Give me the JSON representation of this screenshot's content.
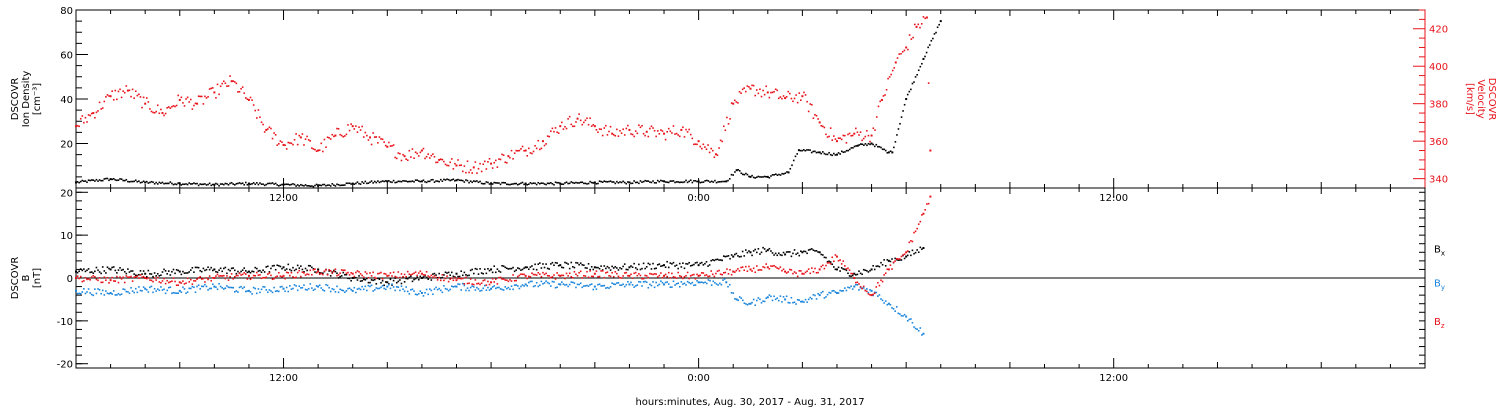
{
  "xlabel": "hours:minutes, Aug. 30, 2017 - Aug. 31, 2017",
  "colors": {
    "black": "#000000",
    "red": "#e8141c",
    "blue": "#1c86dc"
  },
  "chart_data": [
    {
      "type": "scatter",
      "panel": "top",
      "ylabel": [
        "DSCOVR",
        "Ion Density",
        "[cm⁻³]"
      ],
      "ylim": [
        0,
        80
      ],
      "yticks": [
        "80",
        "60",
        "40",
        "20"
      ],
      "xlim": [
        6,
        45
      ],
      "xticks": [
        {
          "x": 12,
          "label": "12:00"
        },
        {
          "x": 24,
          "label": "0:00"
        },
        {
          "x": 36,
          "label": "12:00"
        }
      ],
      "grid": false,
      "right_axis": {
        "ylabel": [
          "DSCOVR",
          "Velocity",
          "[km/s]"
        ],
        "ylim": [
          335,
          430
        ],
        "ticks": [
          "420",
          "400",
          "380",
          "360",
          "340"
        ]
      },
      "series": [
        {
          "axis": "left",
          "color": "#000000",
          "points": [
            [
              6,
              2.5
            ],
            [
              7,
              4
            ],
            [
              8,
              2.5
            ],
            [
              9,
              2
            ],
            [
              10,
              1.5
            ],
            [
              11,
              2
            ],
            [
              12,
              1.5
            ],
            [
              13,
              1
            ],
            [
              14,
              2
            ],
            [
              15,
              3
            ],
            [
              16,
              3
            ],
            [
              17,
              3.5
            ],
            [
              18,
              2
            ],
            [
              19,
              2
            ],
            [
              20,
              2
            ],
            [
              21,
              2.5
            ],
            [
              22,
              2.5
            ],
            [
              23,
              3
            ],
            [
              24,
              3
            ],
            [
              24.8,
              3
            ],
            [
              25.1,
              8
            ],
            [
              25.5,
              5
            ],
            [
              26,
              5
            ],
            [
              26.6,
              7
            ],
            [
              26.9,
              17
            ],
            [
              27.5,
              16
            ],
            [
              28,
              15
            ],
            [
              28.6,
              19
            ],
            [
              29,
              20
            ],
            [
              29.5,
              16
            ],
            [
              29.6,
              16
            ],
            [
              30,
              40
            ],
            [
              30.5,
              58
            ],
            [
              31,
              75
            ]
          ]
        },
        {
          "axis": "right",
          "color": "#e8141c",
          "points": [
            [
              6,
              368
            ],
            [
              6.5,
              375
            ],
            [
              7,
              384
            ],
            [
              7.5,
              387
            ],
            [
              8,
              380
            ],
            [
              8.5,
              375
            ],
            [
              9,
              382
            ],
            [
              9.5,
              380
            ],
            [
              10,
              386
            ],
            [
              10.5,
              392
            ],
            [
              11,
              382
            ],
            [
              11.5,
              366
            ],
            [
              12,
              358
            ],
            [
              12.5,
              362
            ],
            [
              13,
              355
            ],
            [
              13.5,
              363
            ],
            [
              14,
              368
            ],
            [
              14.5,
              362
            ],
            [
              15,
              357
            ],
            [
              15.5,
              352
            ],
            [
              16,
              355
            ],
            [
              16.5,
              350
            ],
            [
              17,
              347
            ],
            [
              17.5,
              346
            ],
            [
              18,
              348
            ],
            [
              18.5,
              352
            ],
            [
              19,
              355
            ],
            [
              19.5,
              360
            ],
            [
              20,
              368
            ],
            [
              20.5,
              372
            ],
            [
              21,
              368
            ],
            [
              21.5,
              364
            ],
            [
              22,
              366
            ],
            [
              22.5,
              365
            ],
            [
              23,
              364
            ],
            [
              23.5,
              366
            ],
            [
              24,
              360
            ],
            [
              24.5,
              353
            ],
            [
              25,
              380
            ],
            [
              25.5,
              388
            ],
            [
              26,
              386
            ],
            [
              26.5,
              383
            ],
            [
              27,
              384
            ],
            [
              27.5,
              370
            ],
            [
              28,
              360
            ],
            [
              28.5,
              364
            ],
            [
              29,
              363
            ],
            [
              29.3,
              382
            ],
            [
              29.7,
              402
            ],
            [
              30,
              410
            ],
            [
              30.3,
              421
            ],
            [
              30.6,
              426
            ],
            [
              30.7,
              355
            ]
          ]
        }
      ]
    },
    {
      "type": "scatter",
      "panel": "bottom",
      "ylabel": [
        "DSCOVR",
        "B",
        "[nT]"
      ],
      "ylim": [
        -21,
        21
      ],
      "yticks": [
        "20",
        "10",
        "0",
        "-10",
        "-20"
      ],
      "xlim": [
        6,
        45
      ],
      "xticks": [
        {
          "x": 12,
          "label": "12:00"
        },
        {
          "x": 24,
          "label": "0:00"
        },
        {
          "x": 36,
          "label": "12:00"
        }
      ],
      "zero_line": 0,
      "grid": false,
      "series": [
        {
          "name": "B",
          "sub": "x",
          "color": "#000000",
          "points": [
            [
              6,
              1.5
            ],
            [
              7,
              2
            ],
            [
              8,
              1
            ],
            [
              9,
              1.5
            ],
            [
              10,
              2
            ],
            [
              11,
              1.5
            ],
            [
              12,
              2.5
            ],
            [
              13,
              2
            ],
            [
              14,
              0
            ],
            [
              15,
              -1
            ],
            [
              16,
              0
            ],
            [
              17,
              1
            ],
            [
              18,
              2
            ],
            [
              19,
              2.5
            ],
            [
              20,
              3
            ],
            [
              21,
              2.5
            ],
            [
              22,
              2.5
            ],
            [
              23,
              3
            ],
            [
              24,
              3
            ],
            [
              25,
              5
            ],
            [
              25.5,
              6
            ],
            [
              26,
              6.5
            ],
            [
              26.5,
              5.5
            ],
            [
              27,
              6
            ],
            [
              27.5,
              6
            ],
            [
              28,
              2
            ],
            [
              28.5,
              1
            ],
            [
              29,
              2
            ],
            [
              29.5,
              4
            ],
            [
              30,
              5
            ],
            [
              30.5,
              7
            ]
          ]
        },
        {
          "name": "B",
          "sub": "y",
          "color": "#1c86dc",
          "points": [
            [
              6,
              -3
            ],
            [
              7,
              -3.5
            ],
            [
              8,
              -2.5
            ],
            [
              9,
              -3
            ],
            [
              10,
              -2
            ],
            [
              11,
              -3
            ],
            [
              12,
              -2.5
            ],
            [
              13,
              -2
            ],
            [
              14,
              -3
            ],
            [
              15,
              -2
            ],
            [
              16,
              -3.5
            ],
            [
              17,
              -2
            ],
            [
              18,
              -2.5
            ],
            [
              19,
              -1.5
            ],
            [
              20,
              -1.5
            ],
            [
              21,
              -2
            ],
            [
              22,
              -1.5
            ],
            [
              23,
              -1.5
            ],
            [
              24,
              -1
            ],
            [
              24.8,
              -1
            ],
            [
              25.1,
              -5
            ],
            [
              25.5,
              -6
            ],
            [
              26,
              -4.5
            ],
            [
              26.5,
              -5
            ],
            [
              27,
              -5.5
            ],
            [
              27.5,
              -4
            ],
            [
              28,
              -3.5
            ],
            [
              28.5,
              -2
            ],
            [
              29,
              -3
            ],
            [
              29.5,
              -6
            ],
            [
              30,
              -9
            ],
            [
              30.5,
              -13
            ]
          ]
        },
        {
          "name": "B",
          "sub": "z",
          "color": "#e8141c",
          "points": [
            [
              6,
              0
            ],
            [
              7,
              -0.5
            ],
            [
              8,
              0
            ],
            [
              9,
              -1
            ],
            [
              10,
              0
            ],
            [
              11,
              0.5
            ],
            [
              12,
              0.5
            ],
            [
              13,
              1.5
            ],
            [
              14,
              1
            ],
            [
              15,
              0.5
            ],
            [
              16,
              1
            ],
            [
              17,
              -0.5
            ],
            [
              18,
              -1
            ],
            [
              19,
              0.5
            ],
            [
              20,
              0.5
            ],
            [
              21,
              1
            ],
            [
              22,
              0.5
            ],
            [
              23,
              0.5
            ],
            [
              24,
              0.5
            ],
            [
              25,
              1.5
            ],
            [
              25.5,
              2
            ],
            [
              26,
              2.5
            ],
            [
              26.5,
              1.5
            ],
            [
              27,
              1
            ],
            [
              27.5,
              2
            ],
            [
              28,
              5
            ],
            [
              28.5,
              0
            ],
            [
              29,
              -4
            ],
            [
              29.5,
              2
            ],
            [
              30,
              6
            ],
            [
              30.5,
              15
            ],
            [
              30.7,
              19
            ]
          ]
        }
      ]
    }
  ]
}
